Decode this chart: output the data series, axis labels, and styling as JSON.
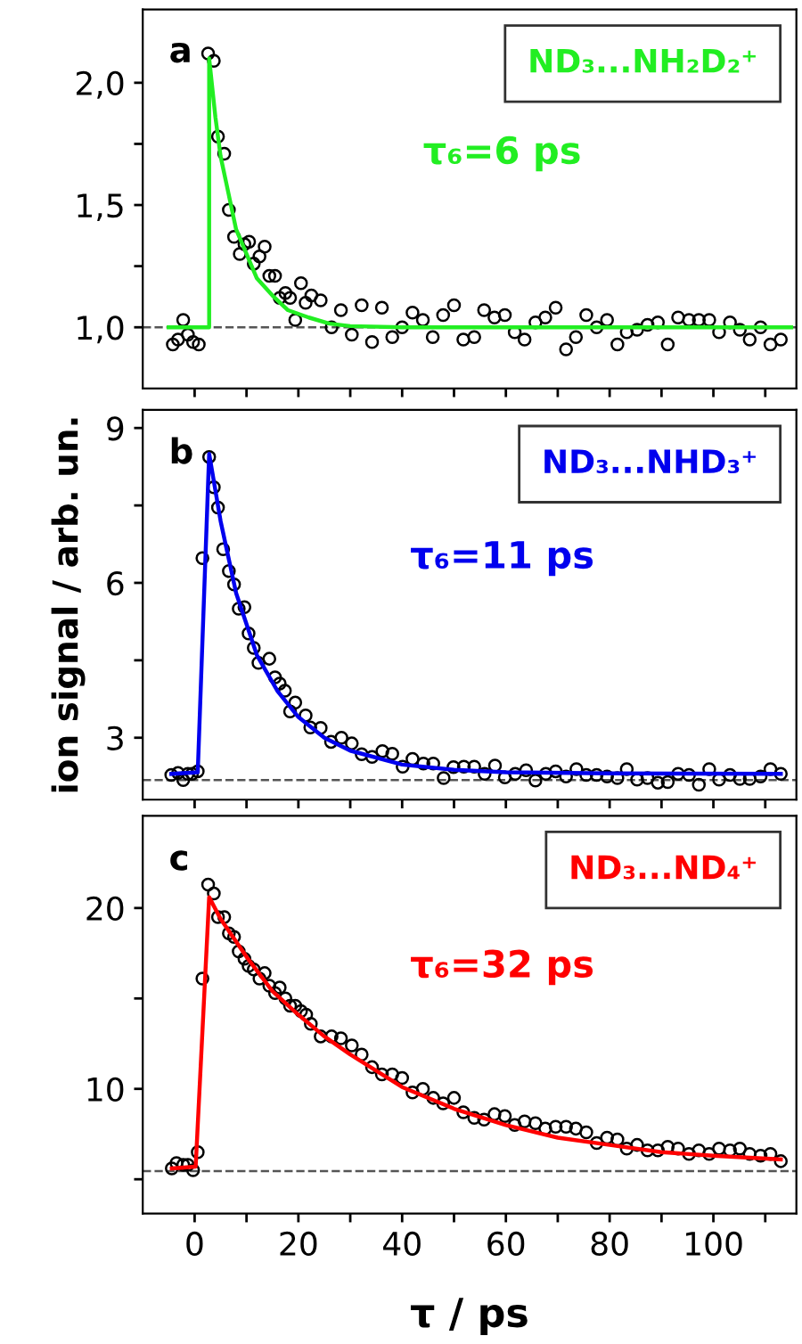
{
  "chart_data": [
    {
      "type": "scatter",
      "xlim": [
        -10,
        116
      ],
      "ylim": [
        0.75,
        2.3
      ],
      "tick_labels": "y",
      "legend": "top right",
      "xticks": [
        {
          "value": 0,
          "label": null
        },
        {
          "value": 10,
          "label": null
        },
        {
          "value": 20,
          "label": null
        },
        {
          "value": 30,
          "label": null
        },
        {
          "value": 40,
          "label": null
        },
        {
          "value": 50,
          "label": null
        },
        {
          "value": 60,
          "label": null
        },
        {
          "value": 70,
          "label": null
        },
        {
          "value": 80,
          "label": null
        },
        {
          "value": 90,
          "label": null
        },
        {
          "value": 100,
          "label": null
        },
        {
          "value": 110,
          "label": null
        }
      ],
      "yticks": [
        {
          "value": 1.0,
          "label": "1,0"
        },
        {
          "value": 1.25,
          "label": null
        },
        {
          "value": 1.5,
          "label": "1,5"
        },
        {
          "value": 1.75,
          "label": null
        },
        {
          "value": 2.0,
          "label": "2,0"
        }
      ],
      "annotations": [
        "a",
        "τ₆=6 ps"
      ],
      "ref_lines": [
        {
          "axis": "y",
          "value": 1.0,
          "color": "#555555",
          "line_style": "dashed"
        }
      ],
      "series": [
        {
          "marker": "circle",
          "color": "#000000",
          "x": [
            -4.2,
            -3.2,
            -2.2,
            -1.3,
            -0.3,
            0.8,
            2.6,
            3.7,
            4.5,
            5.7,
            6.6,
            7.6,
            8.7,
            9.6,
            10.5,
            11.4,
            12.5,
            13.5,
            14.4,
            15.5,
            16.4,
            17.5,
            18.4,
            19.4,
            20.5,
            21.4,
            22.5,
            24.3,
            26.4,
            28.2,
            30.3,
            32.2,
            34.2,
            36.1,
            38.1,
            40.0,
            42.0,
            44.0,
            45.9,
            47.9,
            50.0,
            51.8,
            53.9,
            55.8,
            57.8,
            59.8,
            61.7,
            63.6,
            65.7,
            67.6,
            69.6,
            71.6,
            73.5,
            75.5,
            77.5,
            79.5,
            81.5,
            83.3,
            85.3,
            87.3,
            89.3,
            91.2,
            93.2,
            95.3,
            97.2,
            99.2,
            101.1,
            103.2,
            105.1,
            107.0,
            109.1,
            111.0,
            113.0
          ],
          "values": [
            0.93,
            0.95,
            1.03,
            0.97,
            0.94,
            0.93,
            2.12,
            2.09,
            1.78,
            1.71,
            1.48,
            1.37,
            1.3,
            1.34,
            1.35,
            1.26,
            1.29,
            1.33,
            1.21,
            1.21,
            1.12,
            1.14,
            1.12,
            1.03,
            1.18,
            1.1,
            1.13,
            1.11,
            1.0,
            1.07,
            0.97,
            1.09,
            0.94,
            1.08,
            0.96,
            1.0,
            1.06,
            1.03,
            0.96,
            1.05,
            1.09,
            0.95,
            0.96,
            1.07,
            1.04,
            1.05,
            0.98,
            0.95,
            1.02,
            1.04,
            1.08,
            0.91,
            0.96,
            1.05,
            1.0,
            1.03,
            0.93,
            0.98,
            0.99,
            1.01,
            1.02,
            0.93,
            1.04,
            1.03,
            1.03,
            1.03,
            0.98,
            1.02,
            0.99,
            0.95,
            1.0,
            0.93,
            0.95
          ]
        },
        {
          "type": "line",
          "name": "ND₃...NH₂D₂⁺",
          "color": "#22ee22",
          "x": [
            -5,
            2.8,
            2.8,
            4,
            5,
            6,
            8,
            10,
            12,
            15,
            18,
            22,
            26,
            30,
            40,
            115
          ],
          "values": [
            1.0,
            1.0,
            2.1,
            1.86,
            1.7,
            1.6,
            1.4,
            1.3,
            1.2,
            1.13,
            1.07,
            1.04,
            1.015,
            1.005,
            1.0,
            1.0
          ]
        }
      ]
    },
    {
      "type": "scatter",
      "xlim": [
        -10,
        116
      ],
      "ylim": [
        1.8,
        9.35
      ],
      "tick_labels": "y",
      "legend": "top right",
      "xticks": [
        {
          "value": 0,
          "label": null
        },
        {
          "value": 10,
          "label": null
        },
        {
          "value": 20,
          "label": null
        },
        {
          "value": 30,
          "label": null
        },
        {
          "value": 40,
          "label": null
        },
        {
          "value": 50,
          "label": null
        },
        {
          "value": 60,
          "label": null
        },
        {
          "value": 70,
          "label": null
        },
        {
          "value": 80,
          "label": null
        },
        {
          "value": 90,
          "label": null
        },
        {
          "value": 100,
          "label": null
        },
        {
          "value": 110,
          "label": null
        }
      ],
      "yticks": [
        3,
        {
          "value": 4.5,
          "label": null
        },
        6,
        {
          "value": 7.5,
          "label": null
        },
        9
      ],
      "ylabel": "ion signal / arb. un.",
      "annotations": [
        "b",
        "τ₆=11 ps"
      ],
      "ref_lines": [
        {
          "axis": "y",
          "value": 2.18,
          "color": "#555555",
          "line_style": "dashed"
        }
      ],
      "series": [
        {
          "marker": "circle",
          "color": "#000000",
          "x": [
            -4.5,
            -3.2,
            -2.2,
            -1.3,
            -0.5,
            0.6,
            1.5,
            2.8,
            3.7,
            4.5,
            5.5,
            6.6,
            7.6,
            8.5,
            9.6,
            10.4,
            11.4,
            12.3,
            14.4,
            15.5,
            16.4,
            17.4,
            18.4,
            19.4,
            21.4,
            22.3,
            24.3,
            26.3,
            28.3,
            30.3,
            32.2,
            34.2,
            36.2,
            38.1,
            40.1,
            42.0,
            44.1,
            46.0,
            48.0,
            49.9,
            51.9,
            53.9,
            55.9,
            57.9,
            59.8,
            61.8,
            63.9,
            65.7,
            67.7,
            69.6,
            71.6,
            73.6,
            75.5,
            77.5,
            79.5,
            81.5,
            83.3,
            85.3,
            87.3,
            89.3,
            91.2,
            93.2,
            95.3,
            97.2,
            99.2,
            101.1,
            103.2,
            105.1,
            107.0,
            109.1,
            111.0,
            113.0
          ],
          "values": [
            2.28,
            2.32,
            2.18,
            2.3,
            2.3,
            2.35,
            6.48,
            8.44,
            7.85,
            7.46,
            6.65,
            6.23,
            5.97,
            5.5,
            5.53,
            5.02,
            4.74,
            4.45,
            4.53,
            4.17,
            4.05,
            3.91,
            3.51,
            3.68,
            3.43,
            3.2,
            3.19,
            2.92,
            3.0,
            2.89,
            2.68,
            2.63,
            2.74,
            2.69,
            2.44,
            2.59,
            2.5,
            2.5,
            2.22,
            2.43,
            2.44,
            2.44,
            2.3,
            2.46,
            2.23,
            2.3,
            2.37,
            2.17,
            2.3,
            2.35,
            2.25,
            2.39,
            2.28,
            2.28,
            2.25,
            2.22,
            2.39,
            2.19,
            2.22,
            2.13,
            2.14,
            2.3,
            2.28,
            2.09,
            2.39,
            2.19,
            2.28,
            2.2,
            2.2,
            2.25,
            2.39,
            2.3
          ]
        },
        {
          "type": "line",
          "name": "ND₃...NHD₃⁺",
          "color": "#0000ee",
          "x": [
            -4.5,
            0.6,
            2.8,
            5,
            8,
            12,
            16,
            20,
            25,
            30,
            40,
            50,
            60,
            80,
            113
          ],
          "values": [
            2.3,
            2.33,
            8.5,
            7.2,
            5.8,
            4.6,
            3.9,
            3.4,
            3.0,
            2.75,
            2.48,
            2.38,
            2.33,
            2.31,
            2.3
          ]
        }
      ]
    },
    {
      "type": "scatter",
      "xlim": [
        -10,
        116
      ],
      "ylim": [
        3.1,
        25.1
      ],
      "legend": "top right",
      "xticks": [
        0,
        {
          "value": 10,
          "label": null
        },
        20,
        {
          "value": 30,
          "label": null
        },
        40,
        {
          "value": 50,
          "label": null
        },
        60,
        {
          "value": 70,
          "label": null
        },
        80,
        {
          "value": 90,
          "label": null
        },
        100,
        {
          "value": 110,
          "label": null
        }
      ],
      "yticks": [
        {
          "value": 5,
          "label": null
        },
        10,
        {
          "value": 15,
          "label": null
        },
        20
      ],
      "xlabel": "τ / ps",
      "annotations": [
        "c",
        "τ₆=32 ps"
      ],
      "ref_lines": [
        {
          "axis": "y",
          "value": 5.45,
          "color": "#555555",
          "line_style": "dashed"
        }
      ],
      "series": [
        {
          "marker": "circle",
          "color": "#000000",
          "x": [
            -4.4,
            -3.5,
            -2.2,
            -1.3,
            -0.3,
            0.6,
            1.5,
            2.6,
            3.7,
            4.5,
            5.7,
            6.6,
            7.6,
            8.5,
            9.6,
            10.4,
            11.4,
            12.5,
            13.5,
            14.4,
            15.5,
            16.4,
            17.5,
            18.4,
            19.4,
            20.5,
            21.5,
            22.4,
            24.3,
            26.4,
            28.2,
            30.3,
            32.2,
            34.2,
            36.1,
            38.1,
            40.0,
            42.0,
            44.0,
            46.0,
            47.9,
            50.0,
            51.8,
            53.9,
            55.8,
            57.8,
            59.8,
            61.7,
            63.6,
            65.7,
            67.6,
            69.6,
            71.6,
            73.5,
            75.5,
            77.5,
            79.5,
            81.5,
            83.3,
            85.3,
            87.3,
            89.3,
            91.2,
            93.2,
            95.3,
            97.2,
            99.2,
            101.1,
            103.2,
            105.1,
            107.0,
            109.1,
            111.0,
            113.0
          ],
          "values": [
            5.6,
            5.9,
            5.8,
            5.8,
            5.5,
            6.5,
            16.1,
            21.3,
            20.8,
            19.5,
            19.5,
            18.6,
            18.4,
            17.6,
            17.2,
            16.8,
            16.6,
            16.1,
            16.4,
            15.7,
            15.3,
            15.6,
            15.0,
            14.6,
            14.6,
            14.3,
            14.1,
            13.6,
            12.9,
            12.9,
            12.8,
            12.4,
            11.9,
            11.2,
            10.8,
            10.8,
            10.6,
            9.8,
            10.0,
            9.5,
            9.2,
            9.5,
            8.7,
            8.4,
            8.3,
            8.6,
            8.5,
            8.0,
            8.2,
            8.1,
            7.8,
            7.9,
            7.9,
            7.8,
            7.6,
            7.0,
            7.3,
            7.2,
            6.7,
            6.9,
            6.6,
            6.6,
            6.8,
            6.7,
            6.4,
            6.6,
            6.4,
            6.7,
            6.6,
            6.7,
            6.4,
            6.3,
            6.4,
            6.0
          ]
        },
        {
          "type": "line",
          "name": "ND₃...ND₄⁺",
          "color": "#ff0000",
          "x": [
            -4.4,
            0.2,
            2.8,
            5,
            10,
            15,
            20,
            25,
            30,
            40,
            50,
            60,
            70,
            80,
            90,
            100,
            113
          ],
          "values": [
            5.6,
            5.7,
            20.6,
            19.4,
            17.3,
            15.4,
            14.1,
            12.9,
            11.9,
            10.1,
            8.9,
            8.0,
            7.3,
            6.9,
            6.5,
            6.3,
            6.1
          ]
        }
      ]
    }
  ]
}
